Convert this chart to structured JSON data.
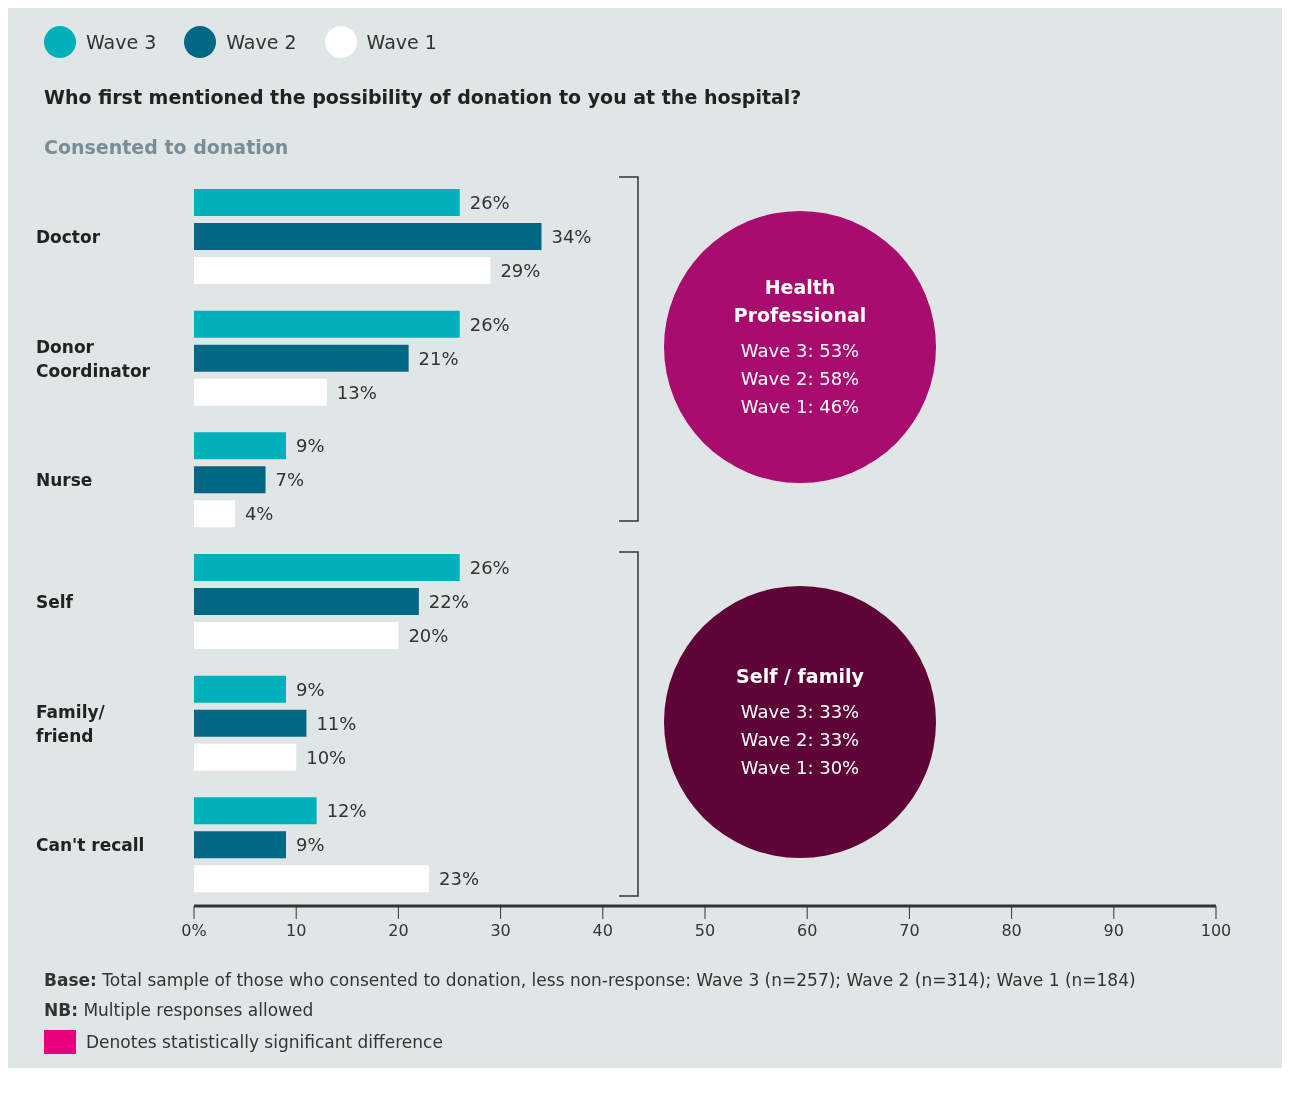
{
  "chart_data": {
    "type": "bar",
    "orientation": "horizontal",
    "title": "Who first mentioned the possibility of donation to you at the hospital?",
    "subtitle": "Consented to donation",
    "categories": [
      "Doctor",
      "Donor Coordinator",
      "Nurse",
      "Self",
      "Family/ friend",
      "Can't recall"
    ],
    "series": [
      {
        "name": "Wave 3",
        "color": "#00b0bb",
        "values": [
          26,
          26,
          9,
          26,
          9,
          12
        ],
        "value_labels": [
          "26%",
          "26%",
          "9%",
          "26%",
          "9%",
          "12%"
        ]
      },
      {
        "name": "Wave 2",
        "color": "#006884",
        "values": [
          34,
          21,
          7,
          22,
          11,
          9
        ],
        "value_labels": [
          "34%",
          "21%",
          "7%",
          "22%",
          "11%",
          "9%"
        ]
      },
      {
        "name": "Wave 1",
        "color": "#ffffff",
        "values": [
          29,
          13,
          4,
          20,
          10,
          23
        ],
        "value_labels": [
          "29%",
          "13%",
          "4%",
          "20%",
          "10%",
          "23%"
        ]
      }
    ],
    "xlim": [
      0,
      100
    ],
    "xticks": [
      {
        "value": 0,
        "label": "0%"
      },
      10,
      20,
      30,
      40,
      50,
      60,
      70,
      80,
      90,
      100
    ],
    "legend": "top left",
    "grid": false,
    "annotations": [
      "Health Professional",
      "Wave 3: 53%",
      "Wave 2: 58%",
      "Wave 1: 46%",
      "Self / family",
      "Wave 3: 33%",
      "Wave 2: 33%",
      "Wave 1: 30%",
      "Base: Total sample of those who consented to donation, less non-response: Wave 3 (n=257); Wave 2 (n=314); Wave 1 (n=184)",
      "NB: Multiple responses allowed",
      "Denotes statistically significant difference"
    ]
  }
}
